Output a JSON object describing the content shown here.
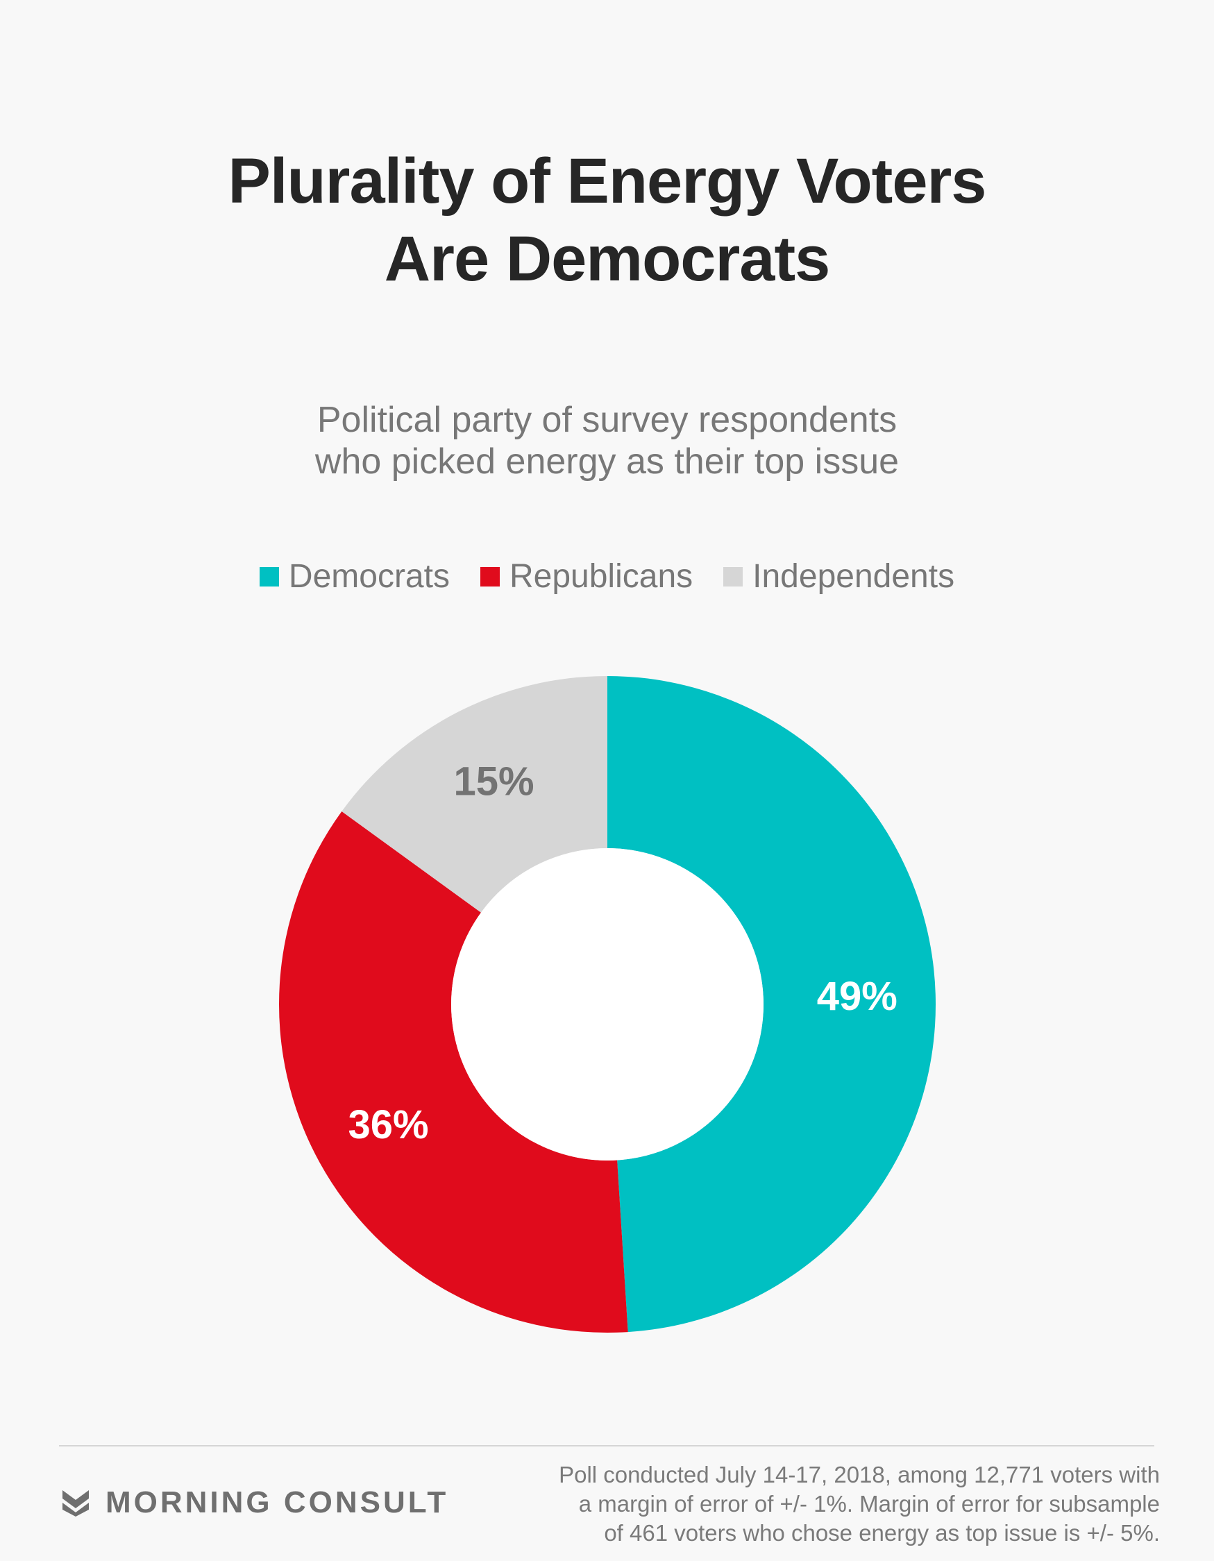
{
  "header": {
    "title_line1": "Plurality of Energy Voters",
    "title_line2": "Are Democrats"
  },
  "subtitle": {
    "line1": "Political party of survey respondents",
    "line2": "who picked energy as their top issue"
  },
  "chart_data": {
    "type": "pie",
    "variant": "donut",
    "legend_position": "top-center",
    "series": [
      {
        "name": "Democrats",
        "value": 49,
        "label": "49%",
        "color": "#00c0c2",
        "label_color": "#ffffff"
      },
      {
        "name": "Republicans",
        "value": 36,
        "label": "36%",
        "color": "#e00b1c",
        "label_color": "#ffffff"
      },
      {
        "name": "Independents",
        "value": 15,
        "label": "15%",
        "color": "#d6d6d6",
        "label_color": "#737373"
      }
    ]
  },
  "footer": {
    "brand": "MORNING CONSULT",
    "brand_icon": "morning-consult-chevron-logo",
    "note_line1": "Poll conducted July 14-17, 2018, among 12,771 voters with",
    "note_line2": "a margin of error of +/- 1%. Margin of error for subsample",
    "note_line3": "of 461 voters who chose energy as top issue is +/- 5%."
  }
}
